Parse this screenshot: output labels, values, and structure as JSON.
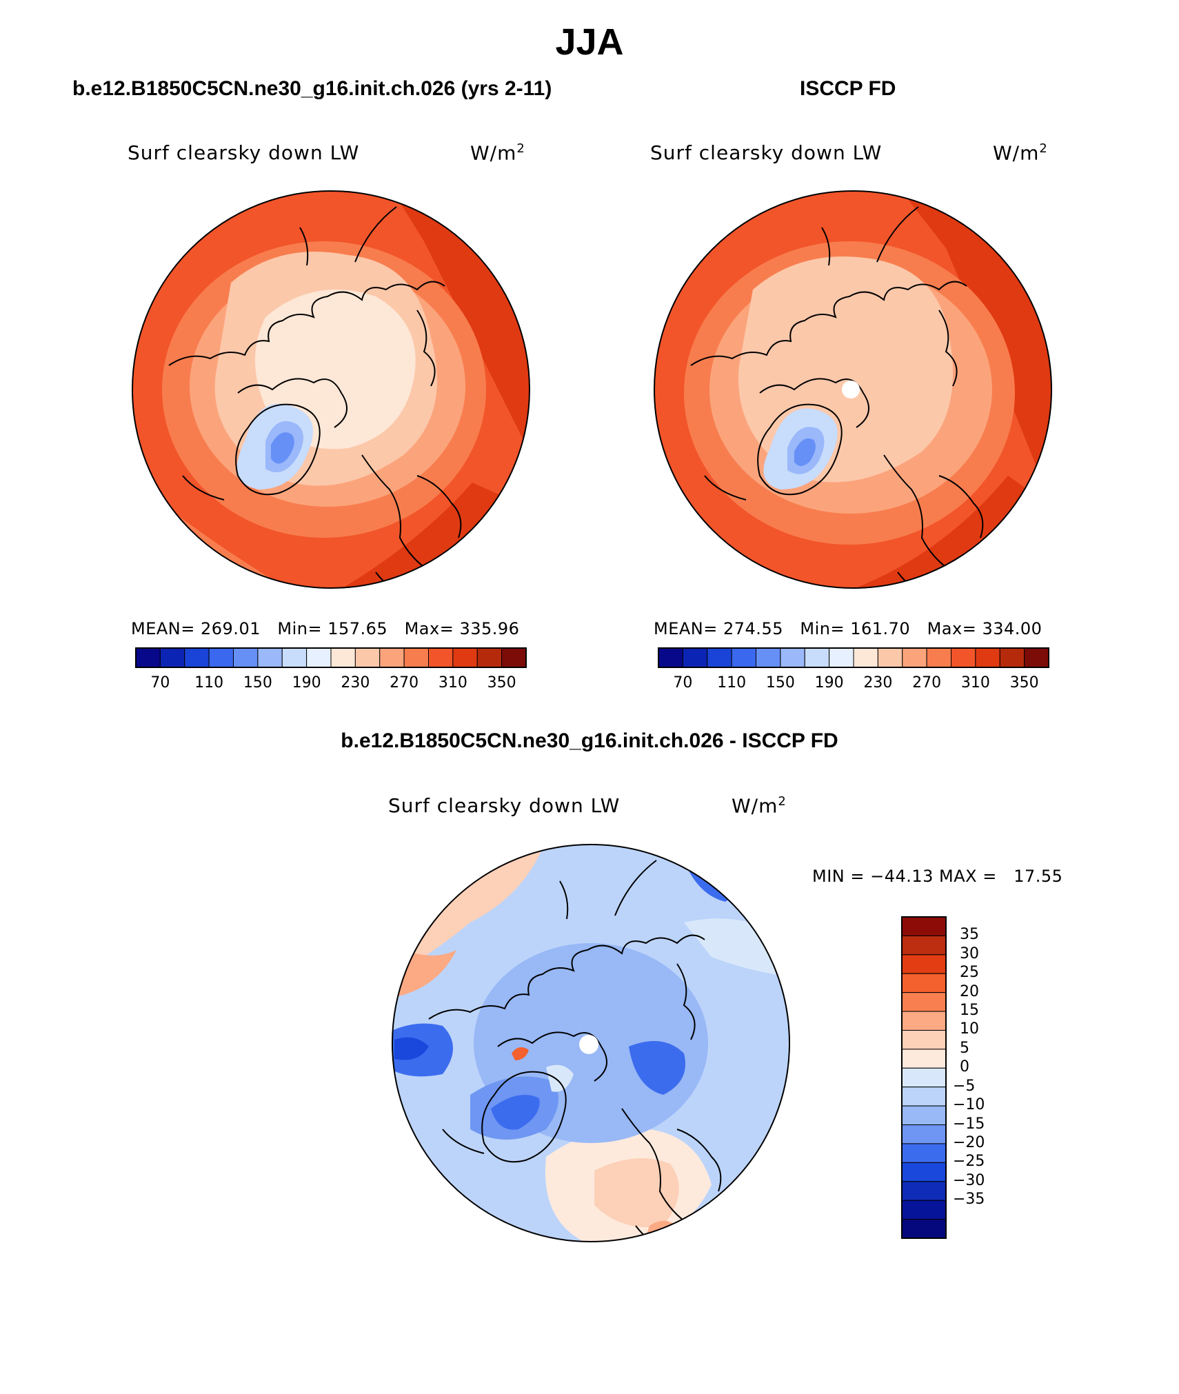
{
  "title": "JJA",
  "panels": [
    {
      "title": "b.e12.B1850C5CN.ne30_g16.init.ch.026 (yrs 2-11)",
      "variable": "Surf clearsky down LW",
      "units": "W/m",
      "units_exp": "2",
      "stats": {
        "mean_label": "MEAN=",
        "mean": "269.01",
        "min_label": "Min=",
        "min": "157.65",
        "max_label": "Max=",
        "max": "335.96"
      }
    },
    {
      "title": "ISCCP FD",
      "variable": "Surf clearsky down LW",
      "units": "W/m",
      "units_exp": "2",
      "stats": {
        "mean_label": "MEAN=",
        "mean": "274.55",
        "min_label": "Min=",
        "min": "161.70",
        "max_label": "Max=",
        "max": "334.00"
      }
    },
    {
      "title": "b.e12.B1850C5CN.ne30_g16.init.ch.026 - ISCCP FD",
      "variable": "Surf clearsky down LW",
      "units": "W/m",
      "units_exp": "2",
      "stats_line": "MIN = −44.13 MAX =   17.55"
    }
  ],
  "colorbar_abs": {
    "colors": [
      "#08088a",
      "#0c24b4",
      "#1a44d8",
      "#3a68ee",
      "#6690f6",
      "#9ab8fa",
      "#c8dcfc",
      "#e6f0fe",
      "#fde7d6",
      "#fcc8aa",
      "#fba47c",
      "#f87d4e",
      "#f2552a",
      "#e03a12",
      "#b62a0c",
      "#7c0c08"
    ],
    "tick_labels": [
      "70",
      "110",
      "150",
      "190",
      "230",
      "270",
      "310",
      "350"
    ]
  },
  "colorbar_diff": {
    "colors_top_to_bottom": [
      "#8e0c08",
      "#bd2d10",
      "#e33d14",
      "#f4602e",
      "#f88050",
      "#fbaa84",
      "#fdd0b8",
      "#fdeadd",
      "#d8e8fa",
      "#bcd4fa",
      "#98b8f6",
      "#6e96f2",
      "#3c6cee",
      "#1a48dc",
      "#0e2cb8",
      "#06149a",
      "#04087c"
    ],
    "tick_labels": [
      "35",
      "30",
      "25",
      "20",
      "15",
      "10",
      "5",
      "0",
      "−5",
      "−10",
      "−15",
      "−20",
      "−25",
      "−30",
      "−35"
    ]
  },
  "map_colors": {
    "coast": "#000000",
    "pole_mask": "#ffffff"
  }
}
